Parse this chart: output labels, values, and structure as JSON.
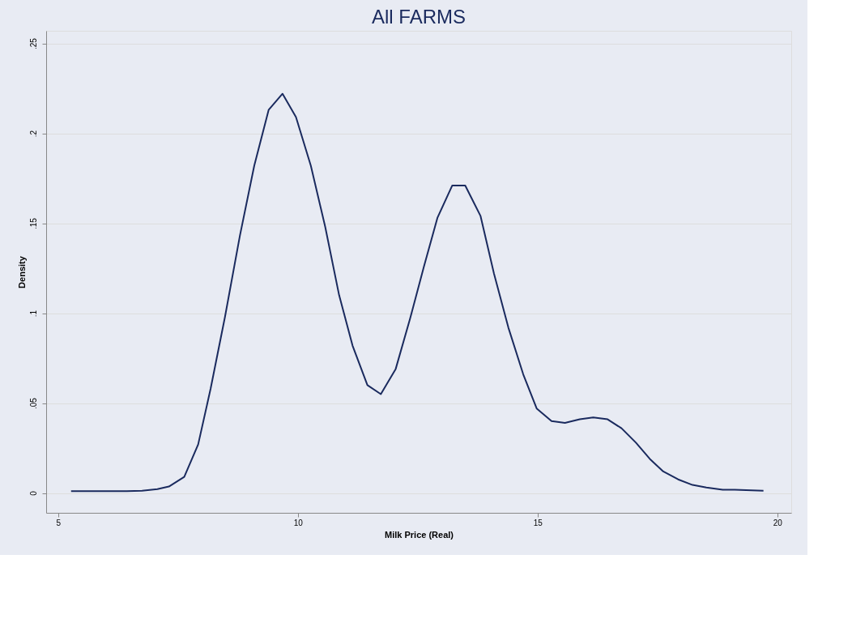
{
  "chart_data": {
    "type": "line",
    "title": "All FARMS",
    "xlabel": "Milk Price  (Real)",
    "ylabel": "Density",
    "x": [
      5.27,
      6.43,
      6.75,
      7.07,
      7.31,
      7.63,
      7.92,
      8.18,
      8.48,
      8.79,
      9.09,
      9.39,
      9.68,
      9.96,
      10.27,
      10.57,
      10.86,
      11.14,
      11.45,
      11.73,
      12.04,
      12.34,
      12.63,
      12.91,
      13.22,
      13.49,
      13.81,
      14.09,
      14.39,
      14.7,
      14.98,
      15.29,
      15.57,
      15.88,
      16.16,
      16.46,
      16.75,
      17.05,
      17.34,
      17.62,
      17.93,
      18.23,
      18.52,
      18.86,
      19.11,
      19.71
    ],
    "series": [
      {
        "color": "#1a2a5e",
        "values": [
          0.001,
          0.001,
          0.0013,
          0.0022,
          0.0036,
          0.009,
          0.027,
          0.058,
          0.098,
          0.143,
          0.182,
          0.213,
          0.222,
          0.209,
          0.182,
          0.148,
          0.11,
          0.082,
          0.06,
          0.055,
          0.069,
          0.097,
          0.126,
          0.153,
          0.171,
          0.171,
          0.154,
          0.122,
          0.092,
          0.066,
          0.047,
          0.04,
          0.039,
          0.041,
          0.042,
          0.041,
          0.036,
          0.028,
          0.019,
          0.012,
          0.0076,
          0.0045,
          0.0031,
          0.0018,
          0.0018,
          0.0013
        ]
      }
    ],
    "xlim": [
      4.75,
      20.29
    ],
    "ylim": [
      -0.011,
      0.257
    ],
    "xticks": [
      5,
      10,
      15,
      20
    ],
    "yticks": [
      0,
      {
        "value": 0.05,
        "label": ".05"
      },
      {
        "value": 0.1,
        "label": ".1"
      },
      {
        "value": 0.15,
        "label": ".15"
      },
      {
        "value": 0.2,
        "label": ".2"
      },
      {
        "value": 0.25,
        "label": ".25"
      }
    ],
    "grid": "y",
    "marker": "none",
    "line_style": "solid",
    "legend": false
  }
}
